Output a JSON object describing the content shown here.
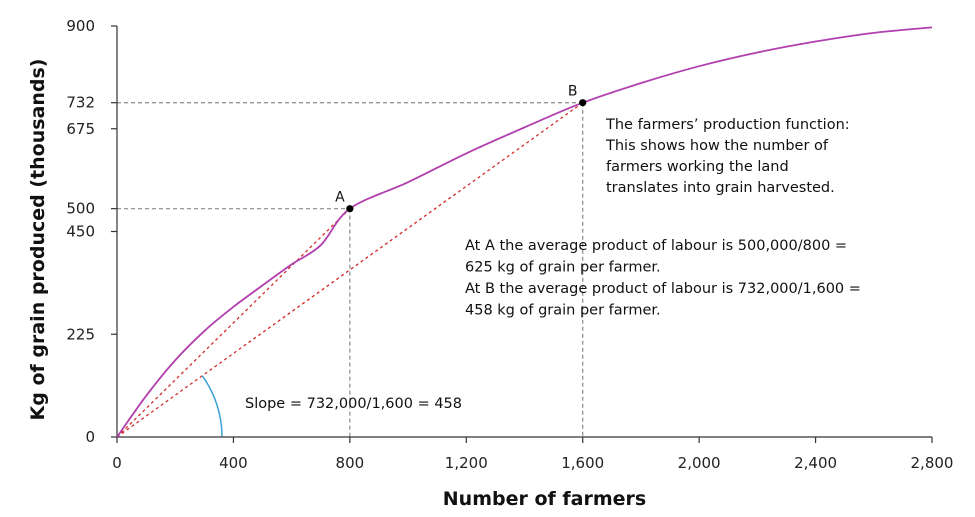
{
  "chart_data": {
    "type": "line",
    "xlabel": "Number of farmers",
    "ylabel": "Kg of grain produced (thousands)",
    "xlim": [
      0,
      2800
    ],
    "ylim": [
      0,
      900
    ],
    "x_ticks": [
      0,
      400,
      800,
      1200,
      1600,
      2000,
      2400,
      2800
    ],
    "x_tick_labels": [
      "0",
      "400",
      "800",
      "1,200",
      "1,600",
      "2,000",
      "2,400",
      "2,800"
    ],
    "y_ticks": [
      0,
      225,
      450,
      500,
      675,
      732,
      900
    ],
    "y_tick_labels": [
      "0",
      "225",
      "450",
      "500",
      "675",
      "732",
      "900"
    ],
    "grid": false,
    "series": [
      {
        "color": "#b23fae",
        "x": [
          0,
          100,
          200,
          300,
          400,
          500,
          600,
          700,
          800,
          1000,
          1200,
          1400,
          1600,
          1800,
          2000,
          2200,
          2400,
          2600,
          2800
        ],
        "y": [
          0,
          90,
          168,
          232,
          285,
          332,
          378,
          420,
          500,
          558,
          621,
          678,
          732,
          775,
          812,
          842,
          866,
          885,
          897
        ]
      }
    ],
    "points": [
      {
        "label": "A",
        "x": 800,
        "y": 500
      },
      {
        "label": "B",
        "x": 1600,
        "y": 732
      }
    ],
    "annotations": {
      "function_note": [
        "The farmers’ production function:",
        "This shows how the number of",
        "farmers working the land",
        "translates into grain harvested."
      ],
      "average_note": [
        "At A the average product of labour is 500,000/800 =",
        "625 kg of grain per farmer.",
        "At B the average product of labour is 732,000/1,600 =",
        "458 kg of grain per farmer."
      ],
      "slope_note": "Slope = 732,000/1,600 = 458"
    },
    "colors": {
      "curve": "#b23fae",
      "rays": "#d42b2b",
      "guides": "#8a8a8a",
      "angle_arc": "#3ba3d6",
      "axis": "#333333"
    }
  }
}
